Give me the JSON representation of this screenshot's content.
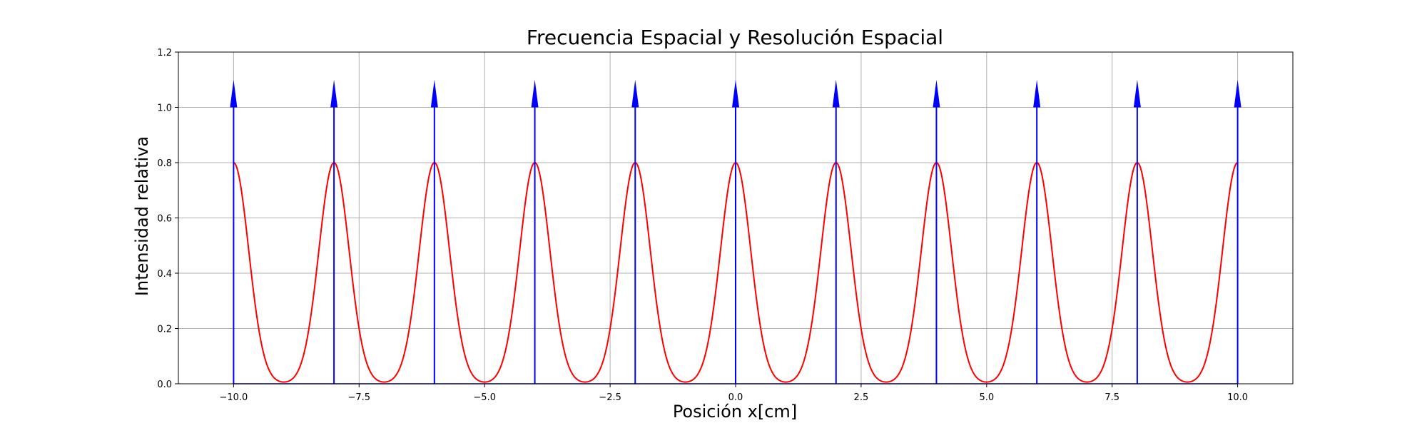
{
  "chart_data": {
    "type": "line",
    "title": "Frecuencia Espacial y Resolución Espacial",
    "xlabel": "Posición x[cm]",
    "ylabel": "Intensidad relativa",
    "xlim": [
      -11.1,
      11.1
    ],
    "ylim": [
      0,
      1.2
    ],
    "x_ticks": [
      -10.0,
      -7.5,
      -5.0,
      -2.5,
      0.0,
      2.5,
      5.0,
      7.5,
      10.0
    ],
    "x_tick_labels": [
      "−10.0",
      "−7.5",
      "−5.0",
      "−2.5",
      "0.0",
      "2.5",
      "5.0",
      "7.5",
      "10.0"
    ],
    "y_ticks": [
      0.0,
      0.2,
      0.4,
      0.6,
      0.8,
      1.0,
      1.2
    ],
    "y_tick_labels": [
      "0.0",
      "0.2",
      "0.4",
      "0.6",
      "0.8",
      "1.0",
      "1.2"
    ],
    "grid": true,
    "legend": "none",
    "series": [
      {
        "kind": "impulses",
        "color": "#0000ff",
        "x": [
          -10,
          -8,
          -6,
          -4,
          -2,
          0,
          2,
          4,
          6,
          8,
          10
        ],
        "height": 1.0,
        "arrowhead_top": 1.1
      },
      {
        "kind": "gaussian_peaks",
        "color": "#ff0000",
        "centers": [
          -10,
          -8,
          -6,
          -4,
          -2,
          0,
          2,
          4,
          6,
          8,
          10
        ],
        "amplitude": 0.8,
        "sigma": 0.3,
        "x_range": [
          -10,
          10
        ]
      }
    ]
  }
}
